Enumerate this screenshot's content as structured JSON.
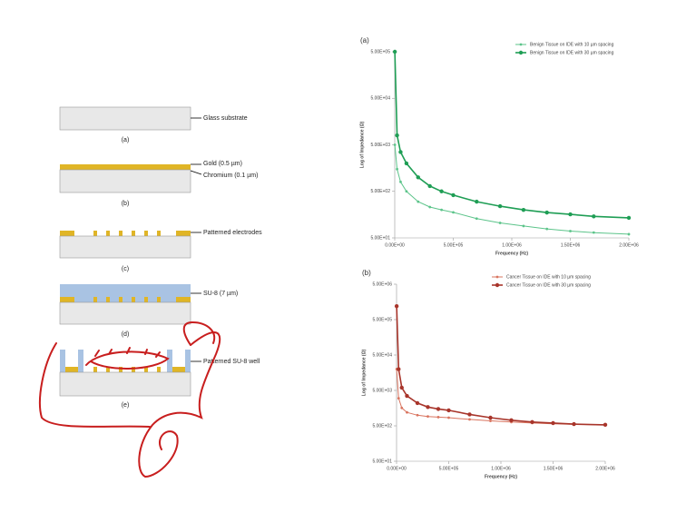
{
  "diagram": {
    "labels": [
      "Glass substrate",
      "Gold (0.5 µm)",
      "Chromium (0.1 µm)",
      "Patterned electrodes",
      "SU-8 (7 µm)",
      "Patterned SU-8 well"
    ],
    "captions": [
      "(a)",
      "(b)",
      "(c)",
      "(d)",
      "(e)"
    ]
  },
  "chart_data": [
    {
      "type": "line",
      "title": "(a)",
      "x_label": "Frequency (Hz)",
      "y_label": "Log of Impedance (Ω)",
      "ylog": true,
      "legend": "top-right",
      "x": [
        1000,
        20000,
        50000,
        100000,
        200000,
        300000,
        400000,
        500000,
        700000,
        900000,
        1100000,
        1300000,
        1500000,
        1700000,
        2000000
      ],
      "series": [
        {
          "name": "Benign Tissue on IDE with 10 µm spacing",
          "color": "#5cc48a",
          "values": [
            5000,
            1500,
            800,
            500,
            300,
            230,
            200,
            177,
            130,
            105,
            90,
            78,
            70,
            65,
            60
          ]
        },
        {
          "name": "Benign Tissue on IDE with 30 µm spacing",
          "color": "#1f9e55",
          "values": [
            500000,
            8000,
            3500,
            2000,
            1000,
            650,
            500,
            415,
            300,
            240,
            200,
            175,
            160,
            145,
            135
          ]
        }
      ],
      "xlim": [
        0,
        2000000
      ],
      "xticks": [
        {
          "value": 0,
          "label": "0.00E+00"
        },
        {
          "value": 500000,
          "label": "5.00E+05"
        },
        {
          "value": 1000000,
          "label": "1.00E+06"
        },
        {
          "value": 1500000,
          "label": "1.50E+06"
        },
        {
          "value": 2000000,
          "label": "2.00E+06"
        }
      ],
      "ylim": [
        50,
        500000
      ],
      "yticks": [
        {
          "value": 50,
          "label": "5.00E+01"
        },
        {
          "value": 500,
          "label": "5.00E+02"
        },
        {
          "value": 5000,
          "label": "5.00E+03"
        },
        {
          "value": 50000,
          "label": "5.00E+04"
        },
        {
          "value": 500000,
          "label": "5.00E+05"
        }
      ]
    },
    {
      "type": "line",
      "title": "(b)",
      "x_label": "Frequency (Hz)",
      "y_label": "Log of Impedance (Ω)",
      "ylog": true,
      "legend": "top-right",
      "x": [
        1000,
        20000,
        50000,
        100000,
        200000,
        300000,
        400000,
        500000,
        700000,
        900000,
        1100000,
        1300000,
        1500000,
        1700000,
        2000000
      ],
      "series": [
        {
          "name": "Cancer Tissue on IDE with 10 µm spacing",
          "color": "#d9745f",
          "values": [
            20000,
            3000,
            1600,
            1200,
            1000,
            920,
            880,
            850,
            760,
            690,
            640,
            600,
            570,
            550,
            535
          ]
        },
        {
          "name": "Cancer Tissue on IDE with 30 µm spacing",
          "color": "#a8352b",
          "values": [
            1200000,
            20000,
            6000,
            3500,
            2200,
            1700,
            1500,
            1370,
            1050,
            850,
            720,
            640,
            600,
            560,
            535
          ]
        }
      ],
      "xlim": [
        0,
        2000000
      ],
      "xticks": [
        {
          "value": 0,
          "label": "0.00E+00"
        },
        {
          "value": 500000,
          "label": "5.00E+05"
        },
        {
          "value": 1000000,
          "label": "1.00E+06"
        },
        {
          "value": 1500000,
          "label": "1.50E+06"
        },
        {
          "value": 2000000,
          "label": "2.00E+06"
        }
      ],
      "ylim": [
        50,
        5000000
      ],
      "yticks": [
        {
          "value": 50,
          "label": "5.00E+01"
        },
        {
          "value": 500,
          "label": "5.00E+02"
        },
        {
          "value": 5000,
          "label": "5.00E+03"
        },
        {
          "value": 50000,
          "label": "5.00E+04"
        },
        {
          "value": 500000,
          "label": "5.00E+05"
        },
        {
          "value": 5000000,
          "label": "5.00E+06"
        }
      ]
    }
  ]
}
